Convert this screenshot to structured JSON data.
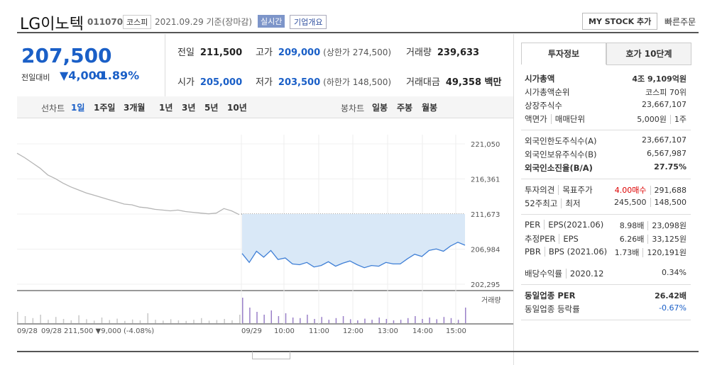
{
  "header": {
    "name": "LG이노텍",
    "code": "011070",
    "market": "코스피",
    "date": "2021.09.29 기준(장마감)",
    "realtime": "실시간",
    "overview": "기업개요",
    "mystock": "MY STOCK 추가",
    "quick_order": "빠른주문"
  },
  "summary": {
    "price": "207,500",
    "change_label": "전일대비",
    "change": "▼4,000",
    "change_pct": "-1.89%",
    "fields": [
      {
        "label": "전일",
        "value": "211,500"
      },
      {
        "label": "고가",
        "value": "209,000",
        "note": "(상한가 274,500)"
      },
      {
        "label": "거래량",
        "value": "239,633"
      },
      {
        "label": "시가",
        "value": "205,000"
      },
      {
        "label": "저가",
        "value": "203,500",
        "note": "(하한가 148,500)"
      },
      {
        "label": "거래대금",
        "value": "49,358 백만"
      }
    ]
  },
  "tabs": {
    "line_chart": "선차트",
    "periods": [
      "1일",
      "1주일",
      "3개월",
      "1년",
      "3년",
      "5년",
      "10년"
    ],
    "candle_chart": "봉차트",
    "candle_periods": [
      "일봉",
      "주봉",
      "월봉"
    ]
  },
  "chart_data": {
    "type": "line",
    "ylim": [
      202295,
      221050
    ],
    "yticks": [
      {
        "value": 202295,
        "label": "202,295"
      },
      {
        "value": 206984,
        "label": "206,984"
      },
      {
        "value": 211673,
        "label": "211,673"
      },
      {
        "value": 216361,
        "label": "216,361"
      },
      {
        "value": 221050,
        "label": "221,050"
      }
    ],
    "x_labels": [
      "09/28",
      "09/29",
      "10:00",
      "11:00",
      "12:00",
      "13:00",
      "14:00",
      "15:00"
    ],
    "volume_label": "거래량",
    "prev_day_note": "09/28 211,500 ▼9,000 (-4.08%)",
    "series": [
      {
        "color": "#b5b5b5",
        "values": [
          219800,
          219200,
          218500,
          217800,
          216900,
          216400,
          215800,
          215300,
          214900,
          214500,
          214200,
          213900,
          213600,
          213300,
          213000,
          212900,
          212600,
          212500,
          212300,
          212200,
          212100,
          212200,
          212000,
          211900,
          211800,
          211700,
          211800,
          212400,
          212100,
          211600
        ]
      },
      {
        "color": "#3f7fd6",
        "values": [
          206400,
          205200,
          206700,
          205900,
          206800,
          205600,
          205800,
          205000,
          204900,
          205200,
          204600,
          204800,
          205300,
          204700,
          205100,
          205400,
          204900,
          204500,
          204800,
          204700,
          205200,
          205000,
          205000,
          205700,
          206300,
          206000,
          206800,
          207000,
          206700,
          207400,
          207900,
          207500
        ]
      }
    ],
    "volume": [
      {
        "color": "#c8c8c8",
        "values": [
          40,
          25,
          18,
          30,
          12,
          22,
          15,
          10,
          28,
          14,
          9,
          20,
          11,
          16,
          8,
          13,
          10,
          35,
          12,
          9,
          14,
          10,
          8,
          12,
          18,
          9,
          11,
          15,
          10,
          30
        ]
      },
      {
        "color": "#9a80c8",
        "values": [
          90,
          55,
          40,
          30,
          45,
          25,
          35,
          20,
          18,
          30,
          15,
          22,
          12,
          18,
          25,
          14,
          10,
          16,
          12,
          20,
          15,
          10,
          12,
          18,
          25,
          15,
          20,
          14,
          22,
          18,
          12,
          55
        ]
      }
    ]
  },
  "side": {
    "tabs": [
      "투자정보",
      "호가 10단계"
    ],
    "sections": [
      [
        {
          "label": [
            "시가총액"
          ],
          "value": [
            "4조 9,109억원"
          ],
          "bold": true
        },
        {
          "label": [
            "시가총액순위"
          ],
          "value": [
            "코스피 70위"
          ]
        },
        {
          "label": [
            "상장주식수"
          ],
          "value": [
            "23,667,107"
          ]
        },
        {
          "label": [
            "액면가",
            "매매단위"
          ],
          "value": [
            "5,000원",
            "1주"
          ]
        }
      ],
      [
        {
          "label": [
            "외국인한도주식수(A)"
          ],
          "value": [
            "23,667,107"
          ]
        },
        {
          "label": [
            "외국인보유주식수(B)"
          ],
          "value": [
            "6,567,987"
          ]
        },
        {
          "label": [
            "외국인소진율(B/A)"
          ],
          "value": [
            "27.75%"
          ],
          "bold": true
        }
      ],
      [
        {
          "label": [
            "투자의견",
            "목표주가"
          ],
          "value": [
            "4.00매수",
            "291,688"
          ],
          "red": true
        },
        {
          "label": [
            "52주최고",
            "최저"
          ],
          "value": [
            "245,500",
            "148,500"
          ]
        }
      ],
      [
        {
          "label": [
            "PER",
            "EPS(2021.06)"
          ],
          "value": [
            "8.98배",
            "23,098원"
          ]
        },
        {
          "label": [
            "추정PER",
            "EPS"
          ],
          "value": [
            "6.26배",
            "33,125원"
          ]
        },
        {
          "label": [
            "PBR",
            "BPS (2021.06)"
          ],
          "value": [
            "1.73배",
            "120,191원"
          ]
        },
        {
          "label": [
            "배당수익률",
            "2020.12"
          ],
          "value": [
            "0.34%"
          ]
        }
      ],
      [
        {
          "label": [
            "동일업종 PER"
          ],
          "value": [
            "26.42배"
          ],
          "bold": true
        },
        {
          "label": [
            "동일업종 등락률"
          ],
          "value": [
            "-0.67%"
          ],
          "blue": true
        }
      ]
    ]
  }
}
